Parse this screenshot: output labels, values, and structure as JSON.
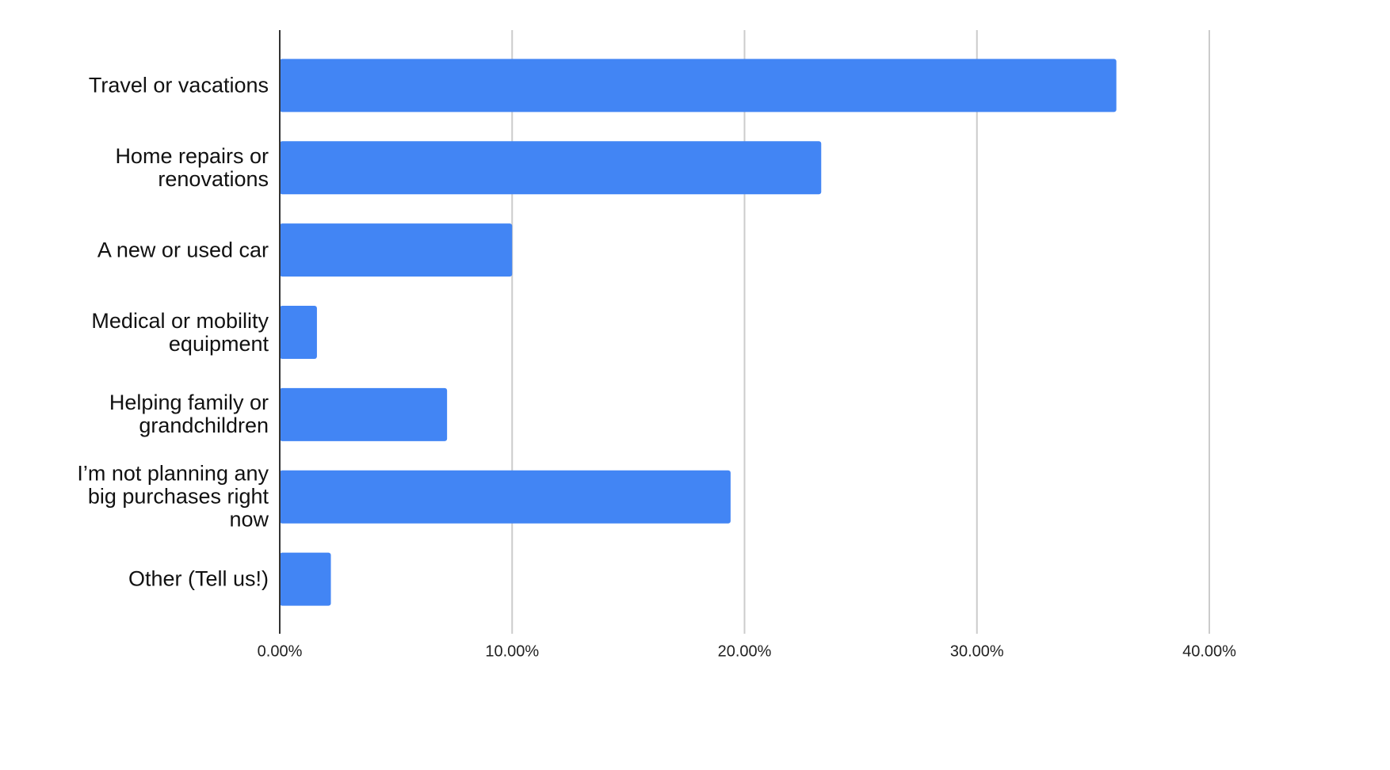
{
  "chart_data": {
    "type": "hbar",
    "categories": [
      "Travel or vacations",
      "Home repairs or renovations",
      "A new or used car",
      "Medical or mobility equipment",
      "Helping family or grandchildren",
      "I’m not planning any big purchases right now",
      "Other (Tell us!)"
    ],
    "values": [
      36.0,
      23.3,
      10.0,
      1.6,
      7.2,
      19.4,
      2.2
    ],
    "color": "#4285f4",
    "xlim": [
      0,
      40
    ],
    "xticks": [
      {
        "value": 0,
        "label": "0.00%"
      },
      {
        "value": 10,
        "label": "10.00%"
      },
      {
        "value": 20,
        "label": "20.00%"
      },
      {
        "value": 30,
        "label": "30.00%"
      },
      {
        "value": 40,
        "label": "40.00%"
      }
    ],
    "grid": true
  }
}
